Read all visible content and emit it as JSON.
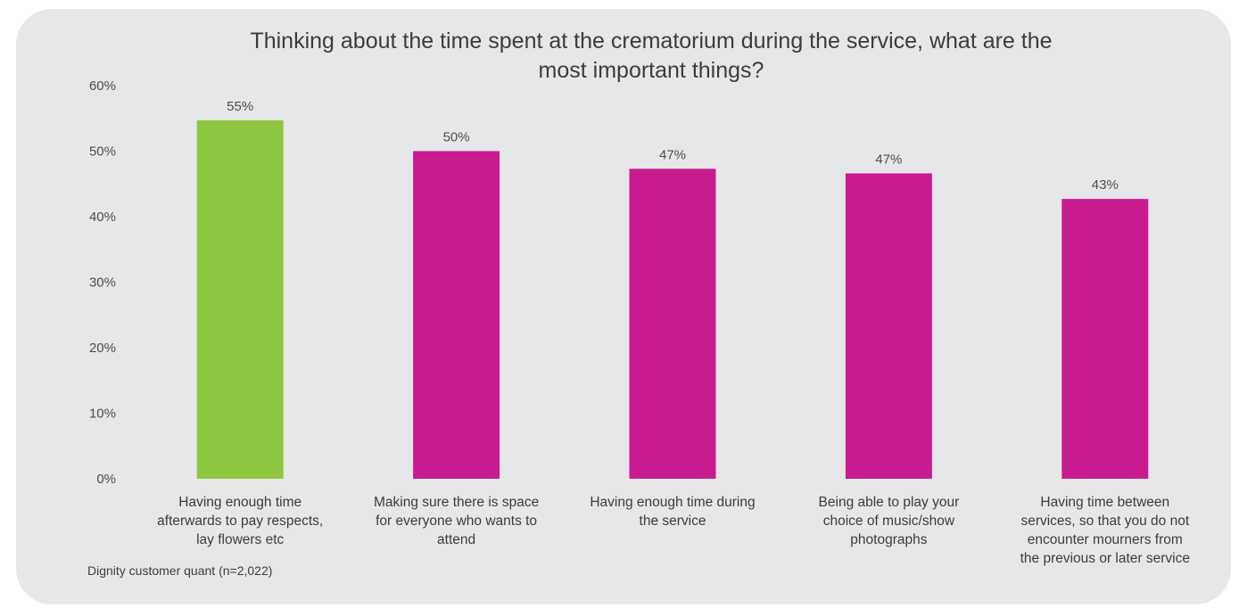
{
  "chart_data": {
    "type": "bar",
    "title_lines": [
      "Thinking about the time spent at the crematorium during the service, what are the",
      "most important things?"
    ],
    "categories": [
      [
        "Having enough time",
        "afterwards to pay respects,",
        "lay flowers etc"
      ],
      [
        "Making sure there is space",
        "for everyone who wants to",
        "attend"
      ],
      [
        "Having enough time during",
        "the service"
      ],
      [
        "Being able to play your",
        "choice of music/show",
        "photographs"
      ],
      [
        "Having time between",
        "services, so that you do not",
        "encounter mourners from",
        "the previous or later service"
      ]
    ],
    "values": [
      54.7,
      50.0,
      47.3,
      46.6,
      42.7
    ],
    "data_labels": [
      "55%",
      "50%",
      "47%",
      "47%",
      "43%"
    ],
    "bar_colors": [
      "#8dc63f",
      "#c81b8f",
      "#c81b8f",
      "#c81b8f",
      "#c81b8f"
    ],
    "ylim": [
      0,
      60
    ],
    "yticks": [
      0,
      10,
      20,
      30,
      40,
      50,
      60
    ],
    "ytick_labels": [
      "0%",
      "10%",
      "20%",
      "30%",
      "40%",
      "50%",
      "60%"
    ],
    "grid": false,
    "legend": "none"
  },
  "source_note": "Dignity customer quant (n=2,022)"
}
